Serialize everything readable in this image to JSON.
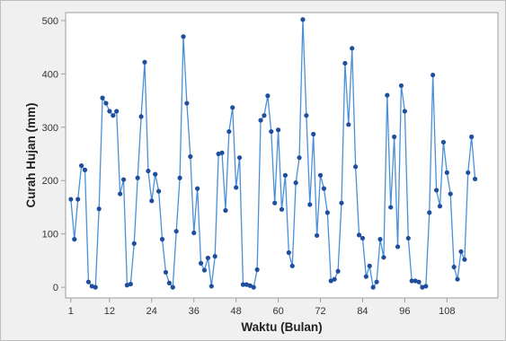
{
  "chart_data": {
    "type": "line",
    "title": "",
    "xlabel": "Waktu (Bulan)",
    "ylabel": "Curah Hujan (mm)",
    "xlim": [
      -0.5,
      122.5
    ],
    "ylim": [
      -20,
      515
    ],
    "xticks": [
      1,
      12,
      24,
      36,
      48,
      60,
      72,
      84,
      96,
      108
    ],
    "yticks": [
      0,
      100,
      200,
      300,
      400,
      500
    ],
    "grid": false,
    "legend": "none",
    "colors": {
      "line": "#4a90d9",
      "marker": "#1f4e9c",
      "plot_background": "#ffffff",
      "outer_background": "#f0f0f0",
      "axis": "#9e9e9e"
    },
    "series": [
      {
        "values": [
          165,
          90,
          165,
          228,
          220,
          10,
          2,
          0,
          147,
          355,
          345,
          330,
          322,
          330,
          175,
          202,
          4,
          6,
          82,
          205,
          320,
          422,
          218,
          162,
          212,
          180,
          90,
          28,
          8,
          0,
          105,
          205,
          470,
          345,
          245,
          102,
          185,
          45,
          32,
          55,
          2,
          58,
          250,
          252,
          144,
          292,
          337,
          187,
          243,
          5,
          5,
          3,
          0,
          33,
          313,
          322,
          359,
          292,
          158,
          295,
          146,
          210,
          65,
          40,
          196,
          243,
          502,
          322,
          155,
          287,
          97,
          210,
          185,
          140,
          12,
          15,
          30,
          158,
          420,
          305,
          448,
          226,
          98,
          92,
          20,
          40,
          0,
          10,
          90,
          56,
          360,
          150,
          282,
          76,
          378,
          330,
          92,
          12,
          12,
          10,
          0,
          2,
          140,
          398,
          182,
          152,
          272,
          215,
          175,
          38,
          15,
          67,
          52,
          215,
          282,
          203
        ]
      }
    ]
  }
}
